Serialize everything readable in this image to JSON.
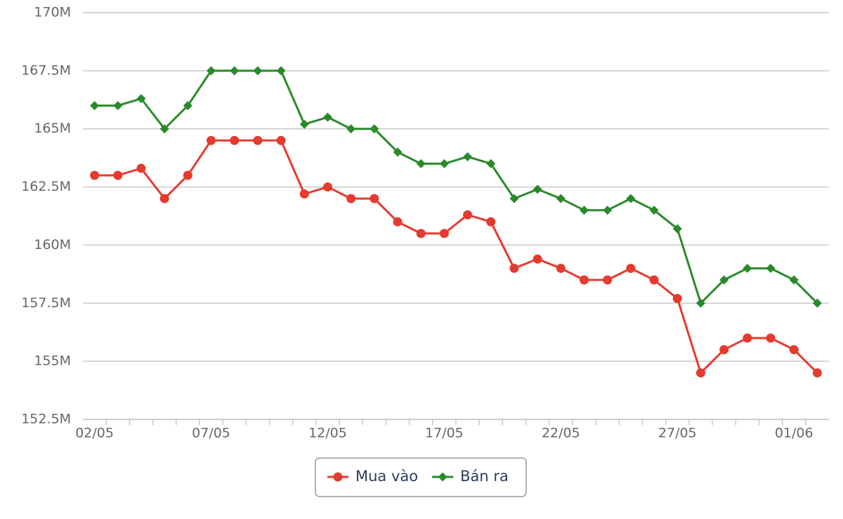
{
  "chart_data": {
    "type": "line",
    "categories": [
      "02/05",
      null,
      null,
      null,
      null,
      "07/05",
      null,
      null,
      null,
      null,
      "12/05",
      null,
      null,
      null,
      null,
      "17/05",
      null,
      null,
      null,
      null,
      "22/05",
      null,
      null,
      null,
      null,
      "27/05",
      null,
      null,
      null,
      null,
      "01/06",
      null
    ],
    "series": [
      {
        "name": "Mua vào",
        "color": "#e53a2f",
        "marker": "circle",
        "values": [
          163.0,
          163.0,
          163.3,
          162.0,
          163.0,
          164.5,
          164.5,
          164.5,
          164.5,
          162.2,
          162.5,
          162.0,
          162.0,
          161.0,
          160.5,
          160.5,
          161.3,
          161.0,
          159.0,
          159.4,
          159.0,
          158.5,
          158.5,
          159.0,
          158.5,
          157.7,
          154.5,
          155.5,
          156.0,
          156.0,
          155.5,
          154.5
        ]
      },
      {
        "name": "Bán ra",
        "color": "#2a8a2a",
        "marker": "diamond",
        "values": [
          166.0,
          166.0,
          166.3,
          165.0,
          166.0,
          167.5,
          167.5,
          167.5,
          167.5,
          165.2,
          165.5,
          165.0,
          165.0,
          164.0,
          163.5,
          163.5,
          163.8,
          163.5,
          162.0,
          162.4,
          162.0,
          161.5,
          161.5,
          162.0,
          161.5,
          160.7,
          157.5,
          158.5,
          159.0,
          159.0,
          158.5,
          157.5
        ]
      }
    ],
    "ylim": [
      152.5,
      170
    ],
    "yticks": [
      {
        "value": 152.5,
        "label": "152.5M"
      },
      {
        "value": 155,
        "label": "155M"
      },
      {
        "value": 157.5,
        "label": "157.5M"
      },
      {
        "value": 160,
        "label": "160M"
      },
      {
        "value": 162.5,
        "label": "162.5M"
      },
      {
        "value": 165,
        "label": "165M"
      },
      {
        "value": 167.5,
        "label": "167.5M"
      },
      {
        "value": 170,
        "label": "170M"
      }
    ],
    "grid": true,
    "legend": "bottom"
  }
}
